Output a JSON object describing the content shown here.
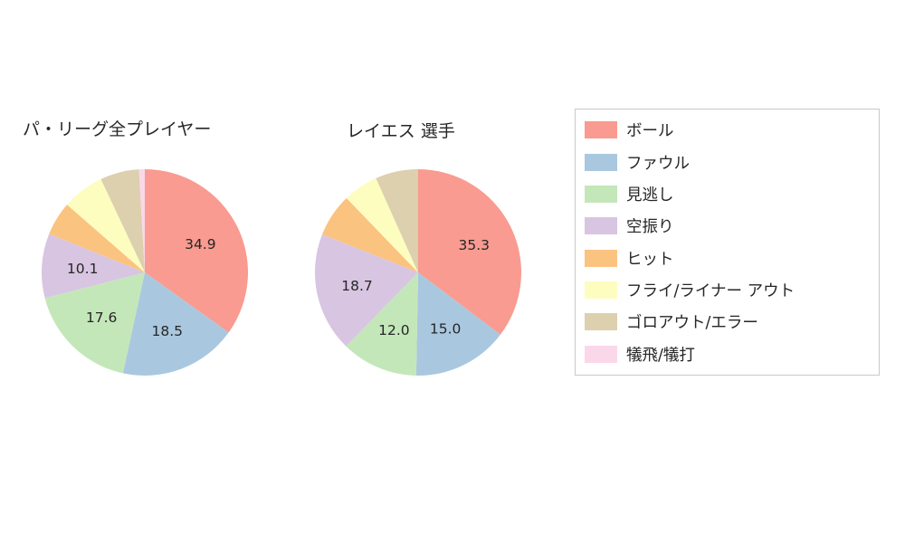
{
  "chart_data": [
    {
      "type": "pie",
      "title": "パ・リーグ全プレイヤー",
      "labels": [
        "ボール",
        "ファウル",
        "見逃し",
        "空振り",
        "ヒット",
        "フライ/ライナー アウト",
        "ゴロアウト/エラー",
        "犠飛/犠打"
      ],
      "values": [
        34.9,
        18.5,
        17.6,
        10.1,
        5.3,
        6.6,
        6.1,
        0.9
      ],
      "shown_value_labels": [
        "34.9",
        "18.5",
        "17.6",
        "10.1"
      ],
      "start_angle_deg": 90,
      "direction": "clockwise",
      "label_threshold": 10,
      "legend": false
    },
    {
      "type": "pie",
      "title": "レイエス 選手",
      "labels": [
        "ボール",
        "ファウル",
        "見逃し",
        "空振り",
        "ヒット",
        "フライ/ライナー アウト",
        "ゴロアウト/エラー",
        "犠飛/犠打"
      ],
      "values": [
        35.3,
        15.0,
        12.0,
        18.7,
        6.8,
        5.5,
        6.7,
        0.0
      ],
      "shown_value_labels": [
        "35.3",
        "15.0",
        "12.0",
        "18.7"
      ],
      "start_angle_deg": 90,
      "direction": "clockwise",
      "label_threshold": 10,
      "legend": false
    }
  ],
  "legend": {
    "position": "right",
    "items": [
      {
        "label": "ボール",
        "color": "#f99b90"
      },
      {
        "label": "ファウル",
        "color": "#a9c8df"
      },
      {
        "label": "見逃し",
        "color": "#c4e7b9"
      },
      {
        "label": "空振り",
        "color": "#d8c5e2"
      },
      {
        "label": "ヒット",
        "color": "#fbc380"
      },
      {
        "label": "フライ/ライナー アウト",
        "color": "#fdfdc0"
      },
      {
        "label": "ゴロアウト/エラー",
        "color": "#dcd0ae"
      },
      {
        "label": "犠飛/犠打",
        "color": "#fbd7ea"
      }
    ]
  },
  "text_color": "#262626"
}
